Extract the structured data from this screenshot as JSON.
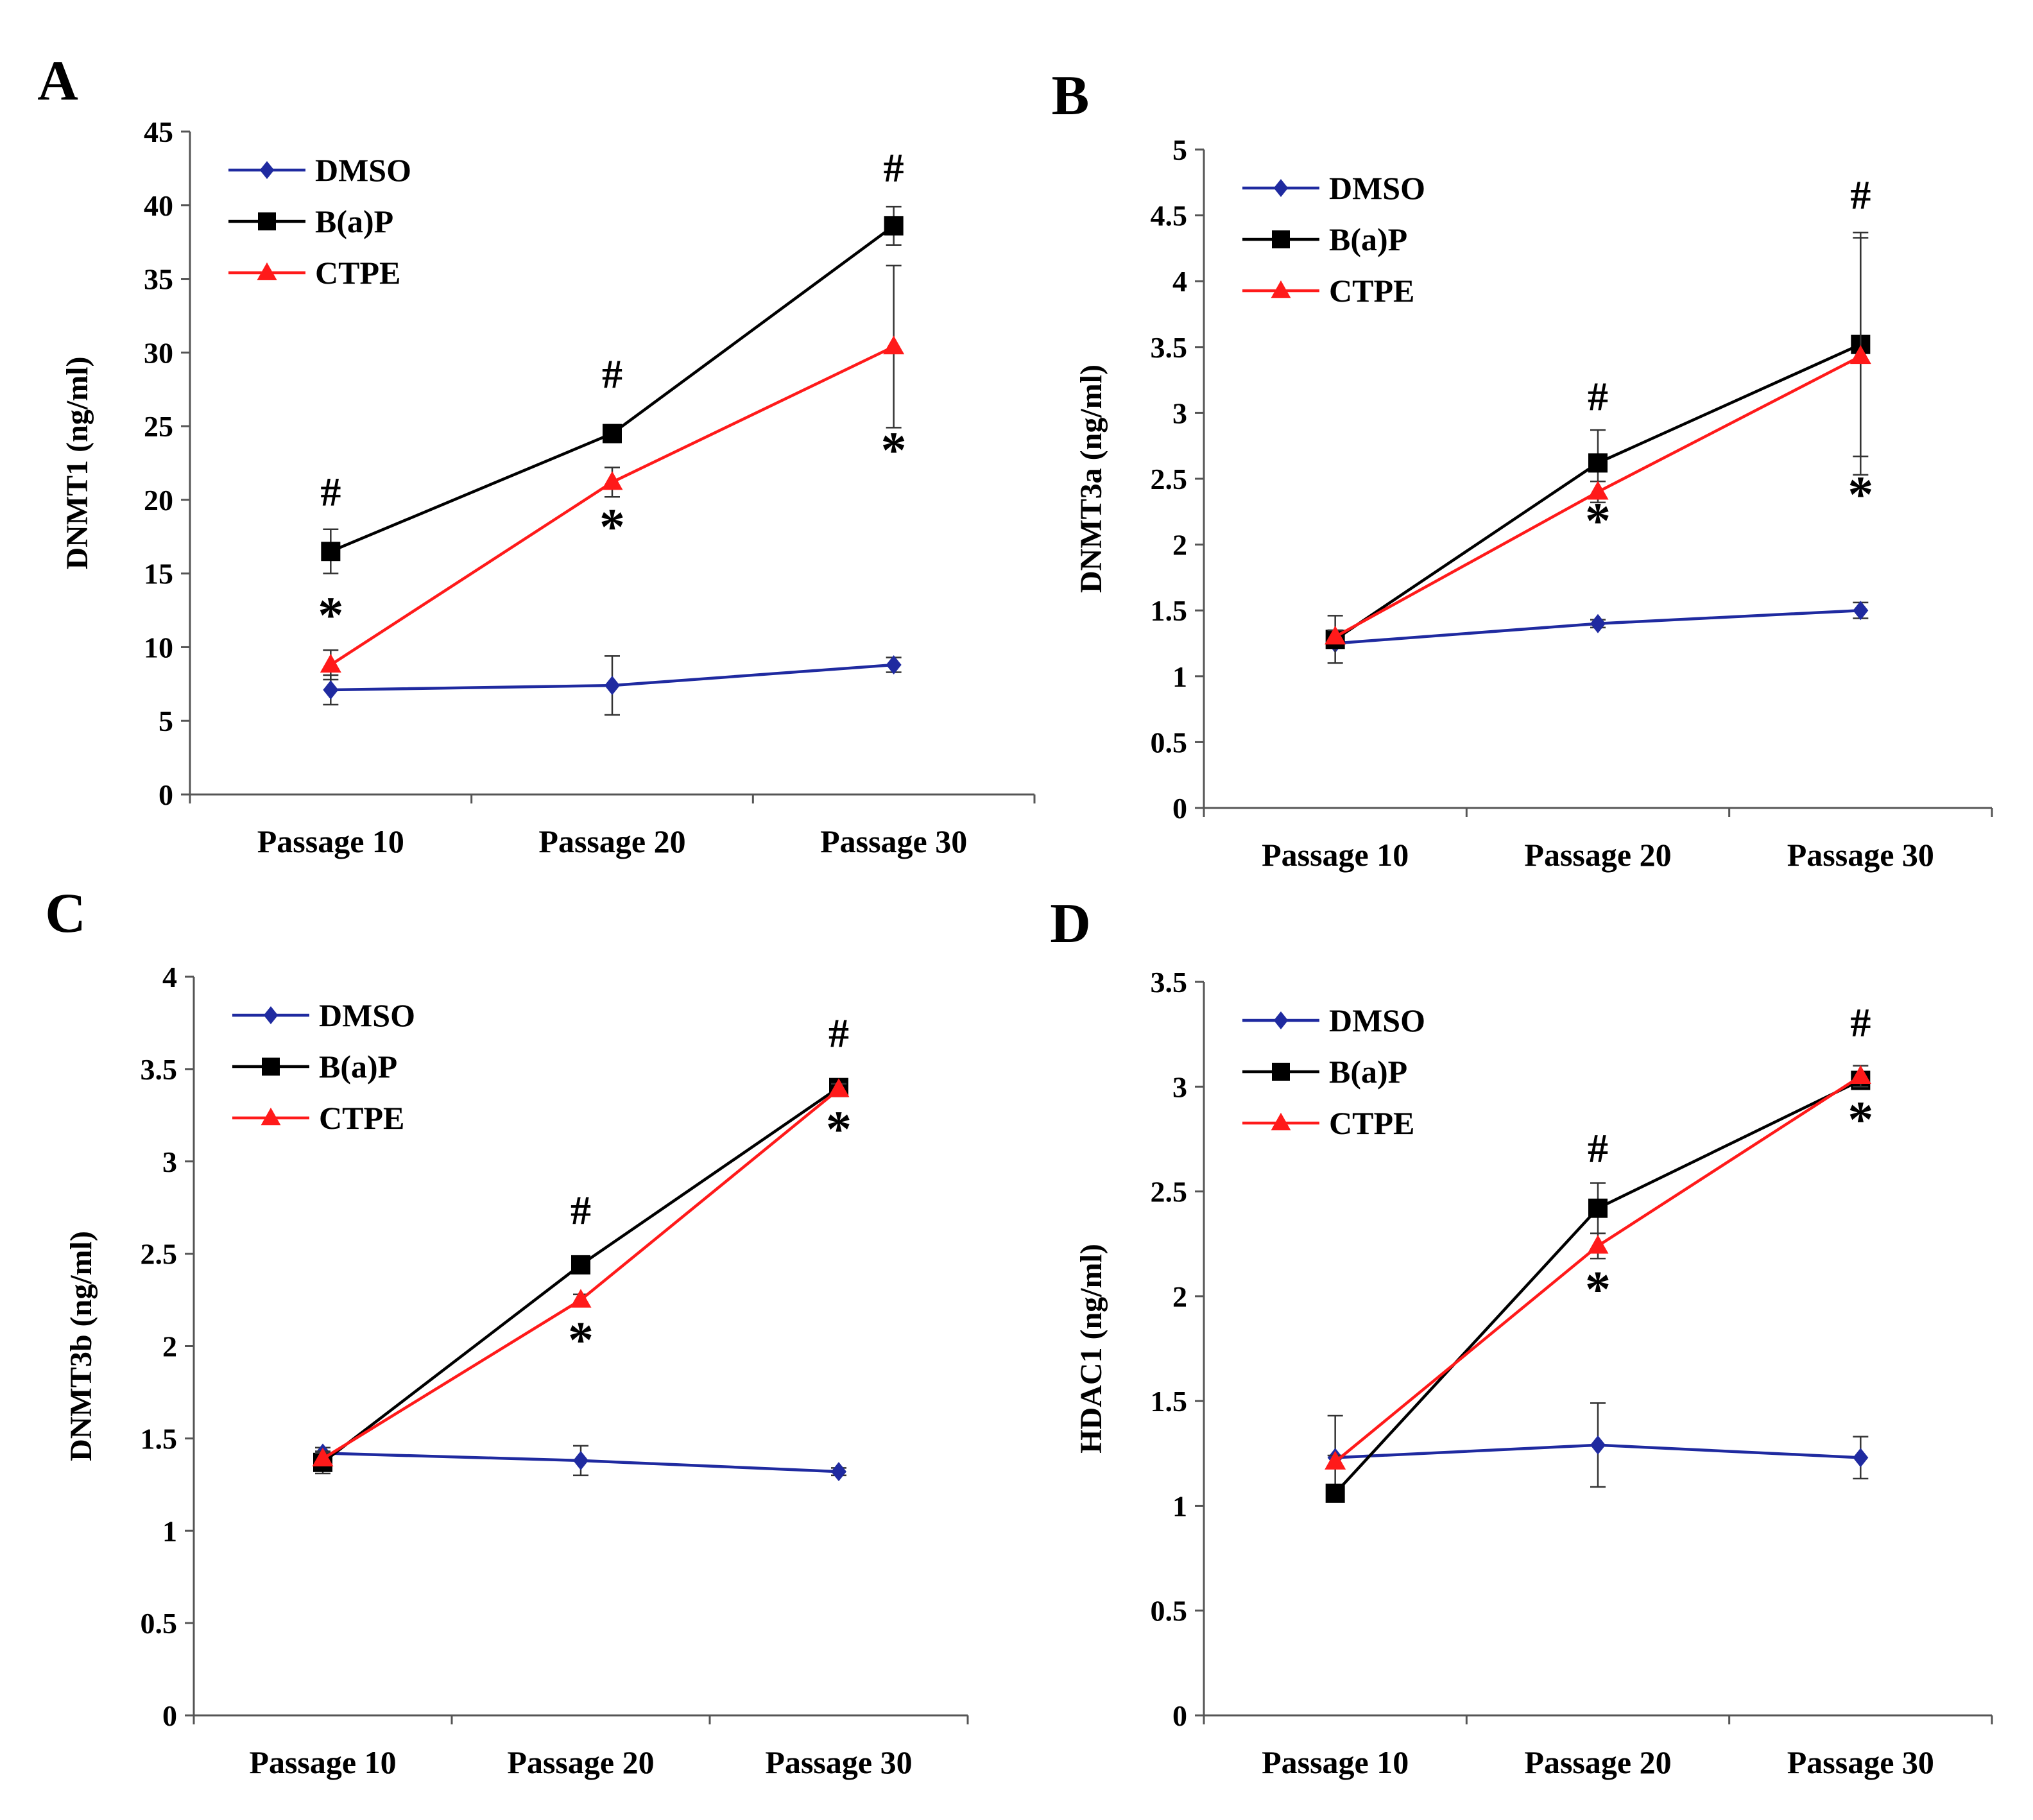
{
  "figure": {
    "colors": {
      "DMSO": "#1f2aa0",
      "B(a)P": "#000000",
      "CTPE": "#ff1a1a",
      "axis": "#555555"
    }
  },
  "chart_data": [
    {
      "panel": "A",
      "type": "line",
      "ylabel": "DNMT1 (ng/ml)",
      "categories": [
        "Passage 10",
        "Passage 20",
        "Passage 30"
      ],
      "ylim": [
        0,
        45
      ],
      "yticks": [
        0,
        5,
        10,
        15,
        20,
        25,
        30,
        35,
        40,
        45
      ],
      "legend": {
        "position": "top-left",
        "entries": [
          "DMSO",
          "B(a)P",
          "CTPE"
        ]
      },
      "series": [
        {
          "name": "DMSO",
          "marker": "diamond",
          "values": [
            7.1,
            7.4,
            8.8
          ],
          "errors": [
            1.0,
            2.0,
            0.5
          ]
        },
        {
          "name": "B(a)P",
          "marker": "square",
          "values": [
            16.5,
            24.5,
            38.6
          ],
          "errors": [
            1.5,
            0.6,
            1.3
          ]
        },
        {
          "name": "CTPE",
          "marker": "triangle",
          "values": [
            8.8,
            21.2,
            30.4
          ],
          "errors": [
            1.0,
            1.0,
            5.5
          ]
        }
      ],
      "annotations": [
        {
          "text": "#",
          "category": 0,
          "y": 19.6
        },
        {
          "text": "*",
          "category": 0,
          "y": 11.0
        },
        {
          "text": "#",
          "category": 1,
          "y": 27.6
        },
        {
          "text": "*",
          "category": 1,
          "y": 17.0
        },
        {
          "text": "#",
          "category": 2,
          "y": 41.6
        },
        {
          "text": "*",
          "category": 2,
          "y": 22.2
        }
      ]
    },
    {
      "panel": "B",
      "type": "line",
      "ylabel": "DNMT3a (ng/ml)",
      "categories": [
        "Passage 10",
        "Passage 20",
        "Passage 30"
      ],
      "ylim": [
        0,
        5
      ],
      "yticks": [
        0,
        0.5,
        1,
        1.5,
        2,
        2.5,
        3,
        3.5,
        4,
        4.5,
        5
      ],
      "legend": {
        "position": "top-left",
        "entries": [
          "DMSO",
          "B(a)P",
          "CTPE"
        ]
      },
      "series": [
        {
          "name": "DMSO",
          "marker": "diamond",
          "values": [
            1.25,
            1.4,
            1.5
          ],
          "errors": [
            0.03,
            0.03,
            0.06
          ]
        },
        {
          "name": "B(a)P",
          "marker": "square",
          "values": [
            1.28,
            2.62,
            3.52
          ],
          "errors": [
            0.18,
            0.25,
            0.85
          ]
        },
        {
          "name": "CTPE",
          "marker": "triangle",
          "values": [
            1.3,
            2.4,
            3.43
          ],
          "errors": [
            0.05,
            0.08,
            0.9
          ]
        }
      ],
      "annotations": [
        {
          "text": "#",
          "category": 1,
          "y": 3.02
        },
        {
          "text": "*",
          "category": 1,
          "y": 2.05
        },
        {
          "text": "#",
          "category": 2,
          "y": 4.55
        },
        {
          "text": "*",
          "category": 2,
          "y": 2.25
        }
      ]
    },
    {
      "panel": "C",
      "type": "line",
      "ylabel": "DNMT3b (ng/ml)",
      "categories": [
        "Passage 10",
        "Passage 20",
        "Passage 30"
      ],
      "ylim": [
        0,
        4
      ],
      "yticks": [
        0,
        0.5,
        1,
        1.5,
        2,
        2.5,
        3,
        3.5,
        4
      ],
      "legend": {
        "position": "top-left",
        "entries": [
          "DMSO",
          "B(a)P",
          "CTPE"
        ]
      },
      "series": [
        {
          "name": "DMSO",
          "marker": "diamond",
          "values": [
            1.42,
            1.38,
            1.32
          ],
          "errors": [
            0.03,
            0.08,
            0.02
          ]
        },
        {
          "name": "B(a)P",
          "marker": "square",
          "values": [
            1.37,
            2.44,
            3.4
          ],
          "errors": [
            0.06,
            0.03,
            0.03
          ]
        },
        {
          "name": "CTPE",
          "marker": "triangle",
          "values": [
            1.39,
            2.25,
            3.39
          ],
          "errors": [
            0.03,
            0.03,
            0.03
          ]
        }
      ],
      "annotations": [
        {
          "text": "#",
          "category": 1,
          "y": 2.66
        },
        {
          "text": "*",
          "category": 1,
          "y": 1.94
        },
        {
          "text": "#",
          "category": 2,
          "y": 3.62
        },
        {
          "text": "*",
          "category": 2,
          "y": 3.08
        }
      ]
    },
    {
      "panel": "D",
      "type": "line",
      "ylabel": "HDAC1 (ng/ml)",
      "categories": [
        "Passage 10",
        "Passage 20",
        "Passage 30"
      ],
      "ylim": [
        0,
        3.5
      ],
      "yticks": [
        0,
        0.5,
        1,
        1.5,
        2,
        2.5,
        3,
        3.5
      ],
      "legend": {
        "position": "top-left",
        "entries": [
          "DMSO",
          "B(a)P",
          "CTPE"
        ]
      },
      "series": [
        {
          "name": "DMSO",
          "marker": "diamond",
          "values": [
            1.23,
            1.29,
            1.23
          ],
          "errors": [
            0.2,
            0.2,
            0.1
          ]
        },
        {
          "name": "B(a)P",
          "marker": "square",
          "values": [
            1.06,
            2.42,
            3.03
          ],
          "errors": [
            0.02,
            0.12,
            0.04
          ]
        },
        {
          "name": "CTPE",
          "marker": "triangle",
          "values": [
            1.21,
            2.24,
            3.05
          ],
          "errors": [
            0.03,
            0.06,
            0.05
          ]
        }
      ],
      "annotations": [
        {
          "text": "#",
          "category": 1,
          "y": 2.64
        },
        {
          "text": "*",
          "category": 1,
          "y": 1.95
        },
        {
          "text": "#",
          "category": 2,
          "y": 3.24
        },
        {
          "text": "*",
          "category": 2,
          "y": 2.76
        }
      ]
    }
  ]
}
